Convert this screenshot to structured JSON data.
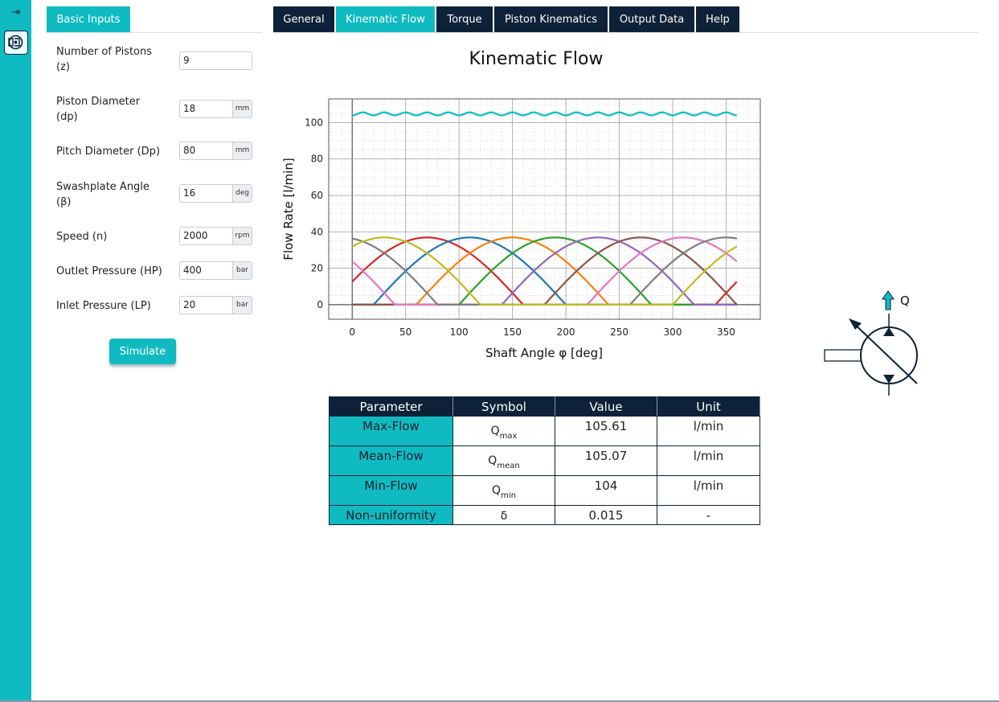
{
  "sidebar": {
    "toggle_icon": "collapse-right-icon",
    "tool_icon": "pump-icon"
  },
  "left_panel": {
    "tab_label": "Basic Inputs",
    "fields": [
      {
        "label": "Number of Pistons (z)",
        "value": "9",
        "unit": ""
      },
      {
        "label": "Piston Diameter (dp)",
        "value": "18",
        "unit": "mm"
      },
      {
        "label": "Pitch Diameter (Dp)",
        "value": "80",
        "unit": "mm"
      },
      {
        "label": "Swashplate Angle (β)",
        "value": "16",
        "unit": "deg"
      },
      {
        "label": "Speed (n)",
        "value": "2000",
        "unit": "rpm"
      },
      {
        "label": "Outlet Pressure (HP)",
        "value": "400",
        "unit": "bar"
      },
      {
        "label": "Inlet Pressure (LP)",
        "value": "20",
        "unit": "bar"
      }
    ],
    "simulate_label": "Simulate"
  },
  "tabs": [
    {
      "label": "General",
      "active": false
    },
    {
      "label": "Kinematic Flow",
      "active": true
    },
    {
      "label": "Torque",
      "active": false
    },
    {
      "label": "Piston Kinematics",
      "active": false
    },
    {
      "label": "Output Data",
      "active": false
    },
    {
      "label": "Help",
      "active": false
    }
  ],
  "colors": {
    "accent": "#0fbbc0",
    "navy": "#0d2238",
    "total_flow": "#17becf"
  },
  "chart_data": {
    "type": "line",
    "title": "Kinematic Flow",
    "xlabel": "Shaft Angle φ [deg]",
    "ylabel": "Flow Rate [l/min]",
    "xlim": [
      -22,
      382
    ],
    "ylim": [
      -8,
      113
    ],
    "x_ticks": [
      0,
      50,
      100,
      150,
      200,
      250,
      300,
      350
    ],
    "y_ticks": [
      0,
      20,
      40,
      60,
      80,
      100
    ],
    "grid": true,
    "minor_grid": true,
    "legend": "none",
    "pistons": 9,
    "piston_peak": 36.9,
    "piston_delivery_span_deg": 180,
    "piston_phase_offsets_deg": [
      -20,
      20,
      60,
      100,
      140,
      180,
      220,
      260,
      300
    ],
    "piston_colors": [
      "#d62728",
      "#1f77b4",
      "#ff7f0e",
      "#2ca02c",
      "#9467bd",
      "#8c564b",
      "#e377c2",
      "#7f7f7f",
      "#bcbd22"
    ],
    "total_flow": {
      "min": 104,
      "max": 105.61,
      "ripple_period_deg": 20
    }
  },
  "results": {
    "headers": [
      "Parameter",
      "Symbol",
      "Value",
      "Unit"
    ],
    "rows": [
      {
        "parameter": "Max-Flow",
        "symbol": "Q",
        "symbol_sub": "max",
        "value": "105.61",
        "unit": "l/min"
      },
      {
        "parameter": "Mean-Flow",
        "symbol": "Q",
        "symbol_sub": "mean",
        "value": "105.07",
        "unit": "l/min"
      },
      {
        "parameter": "Min-Flow",
        "symbol": "Q",
        "symbol_sub": "min",
        "value": "104",
        "unit": "l/min"
      },
      {
        "parameter": "Non-uniformity",
        "symbol": "δ",
        "symbol_sub": "",
        "value": "0.015",
        "unit": "-"
      }
    ]
  },
  "pump_symbol": {
    "flow_label": "Q"
  }
}
